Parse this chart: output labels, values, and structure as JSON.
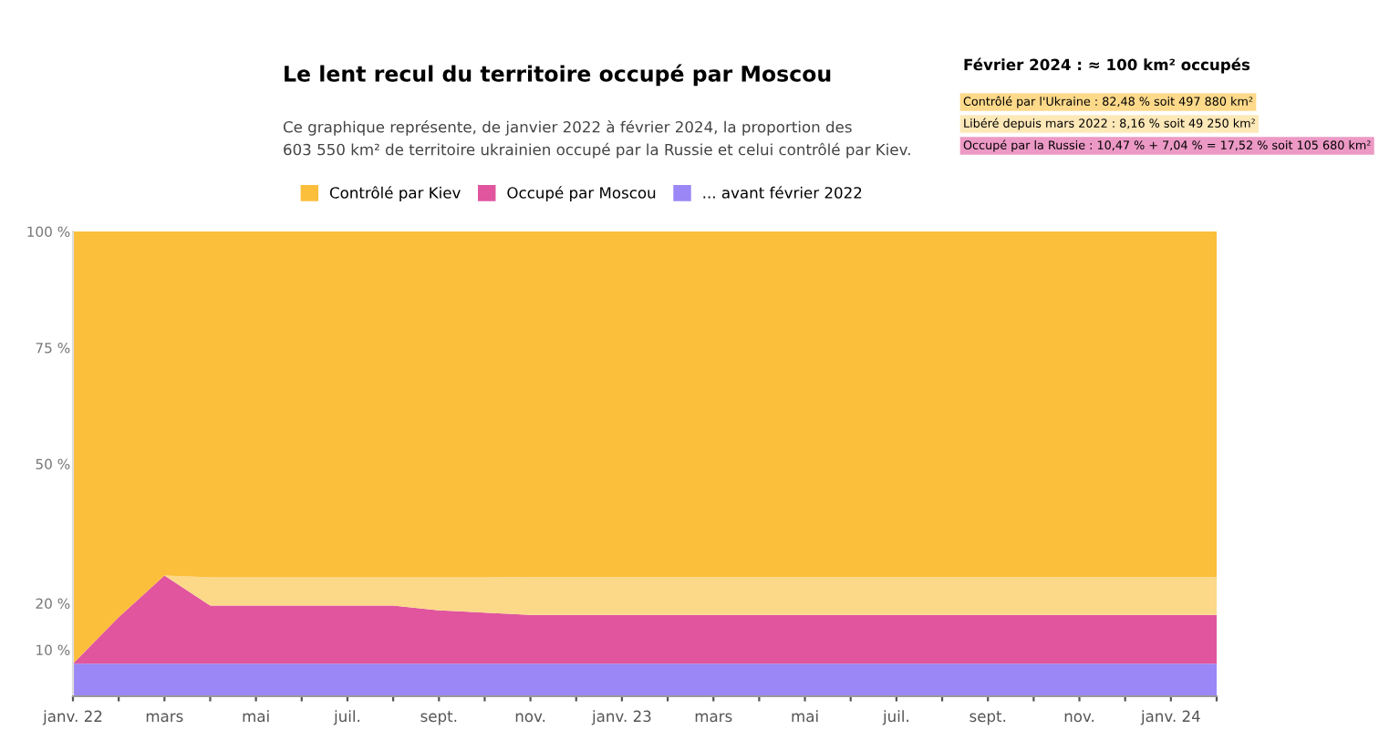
{
  "chart_data": {
    "type": "area",
    "stacked": true,
    "title": "Le lent recul du territoire occupé par Moscou",
    "subtitle": "Ce graphique représente, de janvier 2022 à février 2024, la proportion des\n603 550 km² de territoire ukrainien occupé par la Russie et celui contrôlé par Kiev.",
    "categories": [
      "janv. 22",
      null,
      "mars",
      null,
      "mai",
      null,
      "juil.",
      null,
      "sept.",
      null,
      "nov.",
      null,
      "janv. 23",
      null,
      "mars",
      null,
      "mai",
      null,
      "juil.",
      null,
      "sept.",
      null,
      "nov.",
      null,
      "janv. 24",
      null
    ],
    "ylim": [
      0,
      100
    ],
    "yticks": [
      {
        "value": 10,
        "label": "10 %"
      },
      {
        "value": 20,
        "label": "20 %"
      },
      {
        "value": 50,
        "label": "50 %"
      },
      {
        "value": 75,
        "label": "75 %"
      },
      {
        "value": 100,
        "label": "100 %"
      }
    ],
    "series": [
      {
        "name": "... avant février 2022",
        "color": "#9b87f5",
        "values": [
          7,
          7,
          7,
          7,
          7,
          7,
          7,
          7,
          7,
          7,
          7,
          7,
          7,
          7,
          7,
          7,
          7,
          7,
          7,
          7,
          7,
          7,
          7,
          7,
          7,
          7
        ]
      },
      {
        "name": "Occupé par Moscou",
        "color": "#e0559e",
        "values": [
          0,
          10,
          19,
          12.5,
          12.5,
          12.5,
          12.5,
          12.5,
          11.5,
          11,
          10.5,
          10.5,
          10.5,
          10.5,
          10.5,
          10.5,
          10.5,
          10.5,
          10.5,
          10.5,
          10.5,
          10.5,
          10.5,
          10.5,
          10.5,
          10.5
        ]
      },
      {
        "color": "#fcd889",
        "values": [
          null,
          null,
          0,
          6.1,
          6.1,
          6.1,
          6.1,
          6.1,
          7.1,
          7.6,
          8.2,
          8.2,
          8.2,
          8.2,
          8.2,
          8.2,
          8.2,
          8.2,
          8.2,
          8.2,
          8.2,
          8.2,
          8.2,
          8.2,
          8.2,
          8.2
        ]
      },
      {
        "name": "Contrôlé par Kiev",
        "color": "#fbbf3c",
        "values": [
          93,
          83,
          74,
          74.4,
          74.4,
          74.4,
          74.4,
          74.4,
          74.4,
          74.4,
          74.3,
          74.3,
          74.3,
          74.3,
          74.3,
          74.3,
          74.3,
          74.3,
          74.3,
          74.3,
          74.3,
          74.3,
          74.3,
          74.3,
          74.3,
          74.3
        ]
      }
    ],
    "legend": "top left",
    "annotations": [
      "Février 2024 : ≈ 100 km² occupés",
      "Contrôlé par l'Ukraine : 82,48 % soit 497 880 km²",
      "Libéré depuis mars 2022 : 8,16 % soit 49 250 km²",
      "Occupé par la Russie : 10,47 % + 7,04 % = 17,52 % soit 105 680 km²"
    ]
  }
}
